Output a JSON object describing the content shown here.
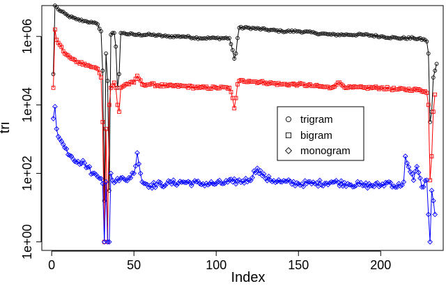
{
  "chart_data": {
    "type": "line",
    "title": "",
    "xlabel": "Index",
    "ylabel": "tri",
    "x_scale": "linear",
    "y_scale": "log10",
    "xlim": [
      -6,
      238
    ],
    "ylim_log10": [
      -0.25,
      6.9
    ],
    "x_ticks": [
      0,
      50,
      100,
      150,
      200
    ],
    "x_tick_labels": [
      "0",
      "50",
      "100",
      "150",
      "200"
    ],
    "y_ticks_log10": [
      0,
      2,
      4,
      6
    ],
    "y_tick_labels": [
      "1e+00",
      "1e+02",
      "1e+04",
      "1e+06"
    ],
    "legend": {
      "position": "center-right",
      "boxed": true
    },
    "series": [
      {
        "name": "trigram",
        "color": "#000000",
        "marker": "circle",
        "anchors": [
          [
            1,
            4.9
          ],
          [
            2,
            6.9
          ],
          [
            5,
            6.75
          ],
          [
            10,
            6.6
          ],
          [
            15,
            6.5
          ],
          [
            20,
            6.45
          ],
          [
            25,
            6.4
          ],
          [
            28,
            6.35
          ],
          [
            30,
            6.15
          ],
          [
            31,
            5.0
          ],
          [
            32,
            1.2
          ],
          [
            33,
            5.5
          ],
          [
            34,
            4.7
          ],
          [
            35,
            1.5
          ],
          [
            36,
            6.05
          ],
          [
            37,
            6.1
          ],
          [
            38,
            6.1
          ],
          [
            39,
            5.7
          ],
          [
            40,
            4.5
          ],
          [
            41,
            4.9
          ],
          [
            42,
            6.1
          ],
          [
            50,
            6.05
          ],
          [
            60,
            6.05
          ],
          [
            70,
            6.0
          ],
          [
            80,
            6.0
          ],
          [
            90,
            5.95
          ],
          [
            100,
            5.95
          ],
          [
            108,
            5.95
          ],
          [
            110,
            5.6
          ],
          [
            111,
            5.35
          ],
          [
            112,
            5.5
          ],
          [
            113,
            5.95
          ],
          [
            114,
            6.25
          ],
          [
            120,
            6.25
          ],
          [
            130,
            6.2
          ],
          [
            140,
            6.15
          ],
          [
            150,
            6.15
          ],
          [
            160,
            6.1
          ],
          [
            170,
            6.05
          ],
          [
            180,
            6.05
          ],
          [
            190,
            6.05
          ],
          [
            200,
            6.0
          ],
          [
            210,
            5.95
          ],
          [
            220,
            5.95
          ],
          [
            227,
            5.9
          ],
          [
            228,
            5.85
          ],
          [
            229,
            5.5
          ],
          [
            230,
            3.5
          ],
          [
            231,
            3.8
          ],
          [
            232,
            4.8
          ],
          [
            233,
            5.0
          ],
          [
            234,
            5.2
          ]
        ]
      },
      {
        "name": "bigram",
        "color": "#ff0000",
        "marker": "square",
        "anchors": [
          [
            1,
            4.5
          ],
          [
            2,
            6.2
          ],
          [
            3,
            5.9
          ],
          [
            5,
            5.75
          ],
          [
            8,
            5.5
          ],
          [
            12,
            5.35
          ],
          [
            16,
            5.25
          ],
          [
            20,
            5.2
          ],
          [
            25,
            5.1
          ],
          [
            28,
            5.05
          ],
          [
            30,
            4.8
          ],
          [
            31,
            3.5
          ],
          [
            32,
            0.0
          ],
          [
            33,
            3.3
          ],
          [
            34,
            0.0
          ],
          [
            35,
            4.0
          ],
          [
            36,
            4.5
          ],
          [
            38,
            4.65
          ],
          [
            39,
            4.5
          ],
          [
            40,
            4.0
          ],
          [
            41,
            3.8
          ],
          [
            42,
            4.5
          ],
          [
            45,
            4.6
          ],
          [
            50,
            4.65
          ],
          [
            52,
            4.85
          ],
          [
            55,
            4.6
          ],
          [
            60,
            4.6
          ],
          [
            70,
            4.55
          ],
          [
            80,
            4.55
          ],
          [
            90,
            4.5
          ],
          [
            100,
            4.5
          ],
          [
            108,
            4.5
          ],
          [
            110,
            4.2
          ],
          [
            111,
            3.9
          ],
          [
            112,
            4.2
          ],
          [
            113,
            4.6
          ],
          [
            114,
            4.7
          ],
          [
            120,
            4.7
          ],
          [
            130,
            4.65
          ],
          [
            140,
            4.6
          ],
          [
            150,
            4.6
          ],
          [
            160,
            4.55
          ],
          [
            170,
            4.5
          ],
          [
            174,
            4.65
          ],
          [
            180,
            4.5
          ],
          [
            190,
            4.5
          ],
          [
            200,
            4.5
          ],
          [
            210,
            4.45
          ],
          [
            220,
            4.45
          ],
          [
            227,
            4.4
          ],
          [
            228,
            4.35
          ],
          [
            229,
            4.0
          ],
          [
            230,
            1.8
          ],
          [
            231,
            2.5
          ],
          [
            232,
            3.8
          ],
          [
            233,
            4.3
          ]
        ]
      },
      {
        "name": "monogram",
        "color": "#0000ff",
        "marker": "diamond",
        "anchors": [
          [
            1,
            3.6
          ],
          [
            2,
            3.95
          ],
          [
            3,
            3.3
          ],
          [
            5,
            3.0
          ],
          [
            8,
            2.75
          ],
          [
            12,
            2.5
          ],
          [
            16,
            2.35
          ],
          [
            20,
            2.3
          ],
          [
            25,
            2.0
          ],
          [
            28,
            1.9
          ],
          [
            30,
            1.85
          ],
          [
            31,
            1.7
          ],
          [
            32,
            0.0
          ],
          [
            33,
            1.75
          ],
          [
            34,
            0.0
          ],
          [
            35,
            0.0
          ],
          [
            36,
            2.0
          ],
          [
            37,
            1.8
          ],
          [
            40,
            1.85
          ],
          [
            45,
            1.8
          ],
          [
            50,
            2.0
          ],
          [
            52,
            2.6
          ],
          [
            55,
            1.75
          ],
          [
            60,
            1.65
          ],
          [
            70,
            1.7
          ],
          [
            80,
            1.75
          ],
          [
            90,
            1.7
          ],
          [
            100,
            1.7
          ],
          [
            110,
            1.75
          ],
          [
            120,
            1.8
          ],
          [
            125,
            2.15
          ],
          [
            130,
            1.85
          ],
          [
            140,
            1.75
          ],
          [
            150,
            1.7
          ],
          [
            160,
            1.7
          ],
          [
            170,
            1.75
          ],
          [
            180,
            1.7
          ],
          [
            190,
            1.65
          ],
          [
            200,
            1.65
          ],
          [
            205,
            1.75
          ],
          [
            210,
            1.6
          ],
          [
            214,
            1.75
          ],
          [
            215,
            2.5
          ],
          [
            216,
            2.3
          ],
          [
            218,
            2.05
          ],
          [
            220,
            1.8
          ],
          [
            222,
            2.2
          ],
          [
            225,
            1.6
          ],
          [
            228,
            1.8
          ],
          [
            229,
            0.8
          ],
          [
            230,
            0.0
          ],
          [
            231,
            1.5
          ],
          [
            232,
            1.2
          ],
          [
            233,
            0.8
          ]
        ]
      }
    ]
  }
}
